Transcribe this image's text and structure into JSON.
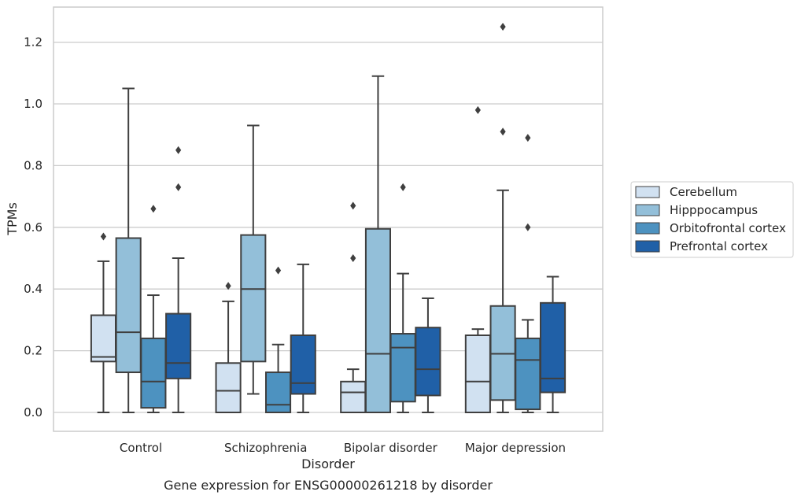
{
  "chart_data": {
    "type": "boxplot",
    "title": "",
    "xlabel": "Disorder",
    "ylabel": "TPMs",
    "caption": "Gene expression for ENSG00000261218 by disorder",
    "ylim": [
      -0.06,
      1.32
    ],
    "yticks": [
      0.0,
      0.2,
      0.4,
      0.6,
      0.8,
      1.0,
      1.2
    ],
    "ytick_labels": [
      "0.0",
      "0.2",
      "0.4",
      "0.6",
      "0.8",
      "1.0",
      "1.2"
    ],
    "grid": true,
    "legend_position": "right",
    "categories": [
      "Control",
      "Schizophrenia",
      "Bipolar disorder",
      "Major depression"
    ],
    "series": [
      {
        "name": "Cerebellum",
        "color": "#d1e1f1",
        "boxes": [
          {
            "whislo": 0.0,
            "q1": 0.165,
            "med": 0.18,
            "q3": 0.315,
            "whishi": 0.49,
            "fliers": [
              0.57
            ]
          },
          {
            "whislo": 0.0,
            "q1": 0.0,
            "med": 0.07,
            "q3": 0.16,
            "whishi": 0.36,
            "fliers": [
              0.41
            ]
          },
          {
            "whislo": 0.0,
            "q1": 0.0,
            "med": 0.065,
            "q3": 0.1,
            "whishi": 0.14,
            "fliers": [
              0.5,
              0.67
            ]
          },
          {
            "whislo": 0.0,
            "q1": 0.0,
            "med": 0.1,
            "q3": 0.25,
            "whishi": 0.27,
            "fliers": [
              0.98
            ]
          }
        ]
      },
      {
        "name": "Hipppocampus",
        "color": "#93bfd9",
        "boxes": [
          {
            "whislo": 0.0,
            "q1": 0.13,
            "med": 0.26,
            "q3": 0.565,
            "whishi": 1.05,
            "fliers": []
          },
          {
            "whislo": 0.06,
            "q1": 0.165,
            "med": 0.4,
            "q3": 0.575,
            "whishi": 0.93,
            "fliers": []
          },
          {
            "whislo": 0.0,
            "q1": 0.0,
            "med": 0.19,
            "q3": 0.595,
            "whishi": 1.09,
            "fliers": []
          },
          {
            "whislo": 0.0,
            "q1": 0.04,
            "med": 0.19,
            "q3": 0.345,
            "whishi": 0.72,
            "fliers": [
              0.91,
              1.25
            ]
          }
        ]
      },
      {
        "name": "Orbitofrontal cortex",
        "color": "#4d92c0",
        "boxes": [
          {
            "whislo": 0.0,
            "q1": 0.015,
            "med": 0.1,
            "q3": 0.24,
            "whishi": 0.38,
            "fliers": [
              0.66
            ]
          },
          {
            "whislo": 0.0,
            "q1": 0.0,
            "med": 0.025,
            "q3": 0.13,
            "whishi": 0.22,
            "fliers": [
              0.46
            ]
          },
          {
            "whislo": 0.0,
            "q1": 0.035,
            "med": 0.21,
            "q3": 0.255,
            "whishi": 0.45,
            "fliers": [
              0.73
            ]
          },
          {
            "whislo": 0.0,
            "q1": 0.01,
            "med": 0.17,
            "q3": 0.24,
            "whishi": 0.3,
            "fliers": [
              0.6,
              0.89
            ]
          }
        ]
      },
      {
        "name": "Prefrontal cortex",
        "color": "#2060a7",
        "boxes": [
          {
            "whislo": 0.0,
            "q1": 0.11,
            "med": 0.16,
            "q3": 0.32,
            "whishi": 0.5,
            "fliers": [
              0.73,
              0.85
            ]
          },
          {
            "whislo": 0.0,
            "q1": 0.06,
            "med": 0.095,
            "q3": 0.25,
            "whishi": 0.48,
            "fliers": []
          },
          {
            "whislo": 0.0,
            "q1": 0.055,
            "med": 0.14,
            "q3": 0.275,
            "whishi": 0.37,
            "fliers": []
          },
          {
            "whislo": 0.0,
            "q1": 0.065,
            "med": 0.11,
            "q3": 0.355,
            "whishi": 0.44,
            "fliers": []
          }
        ]
      }
    ]
  }
}
